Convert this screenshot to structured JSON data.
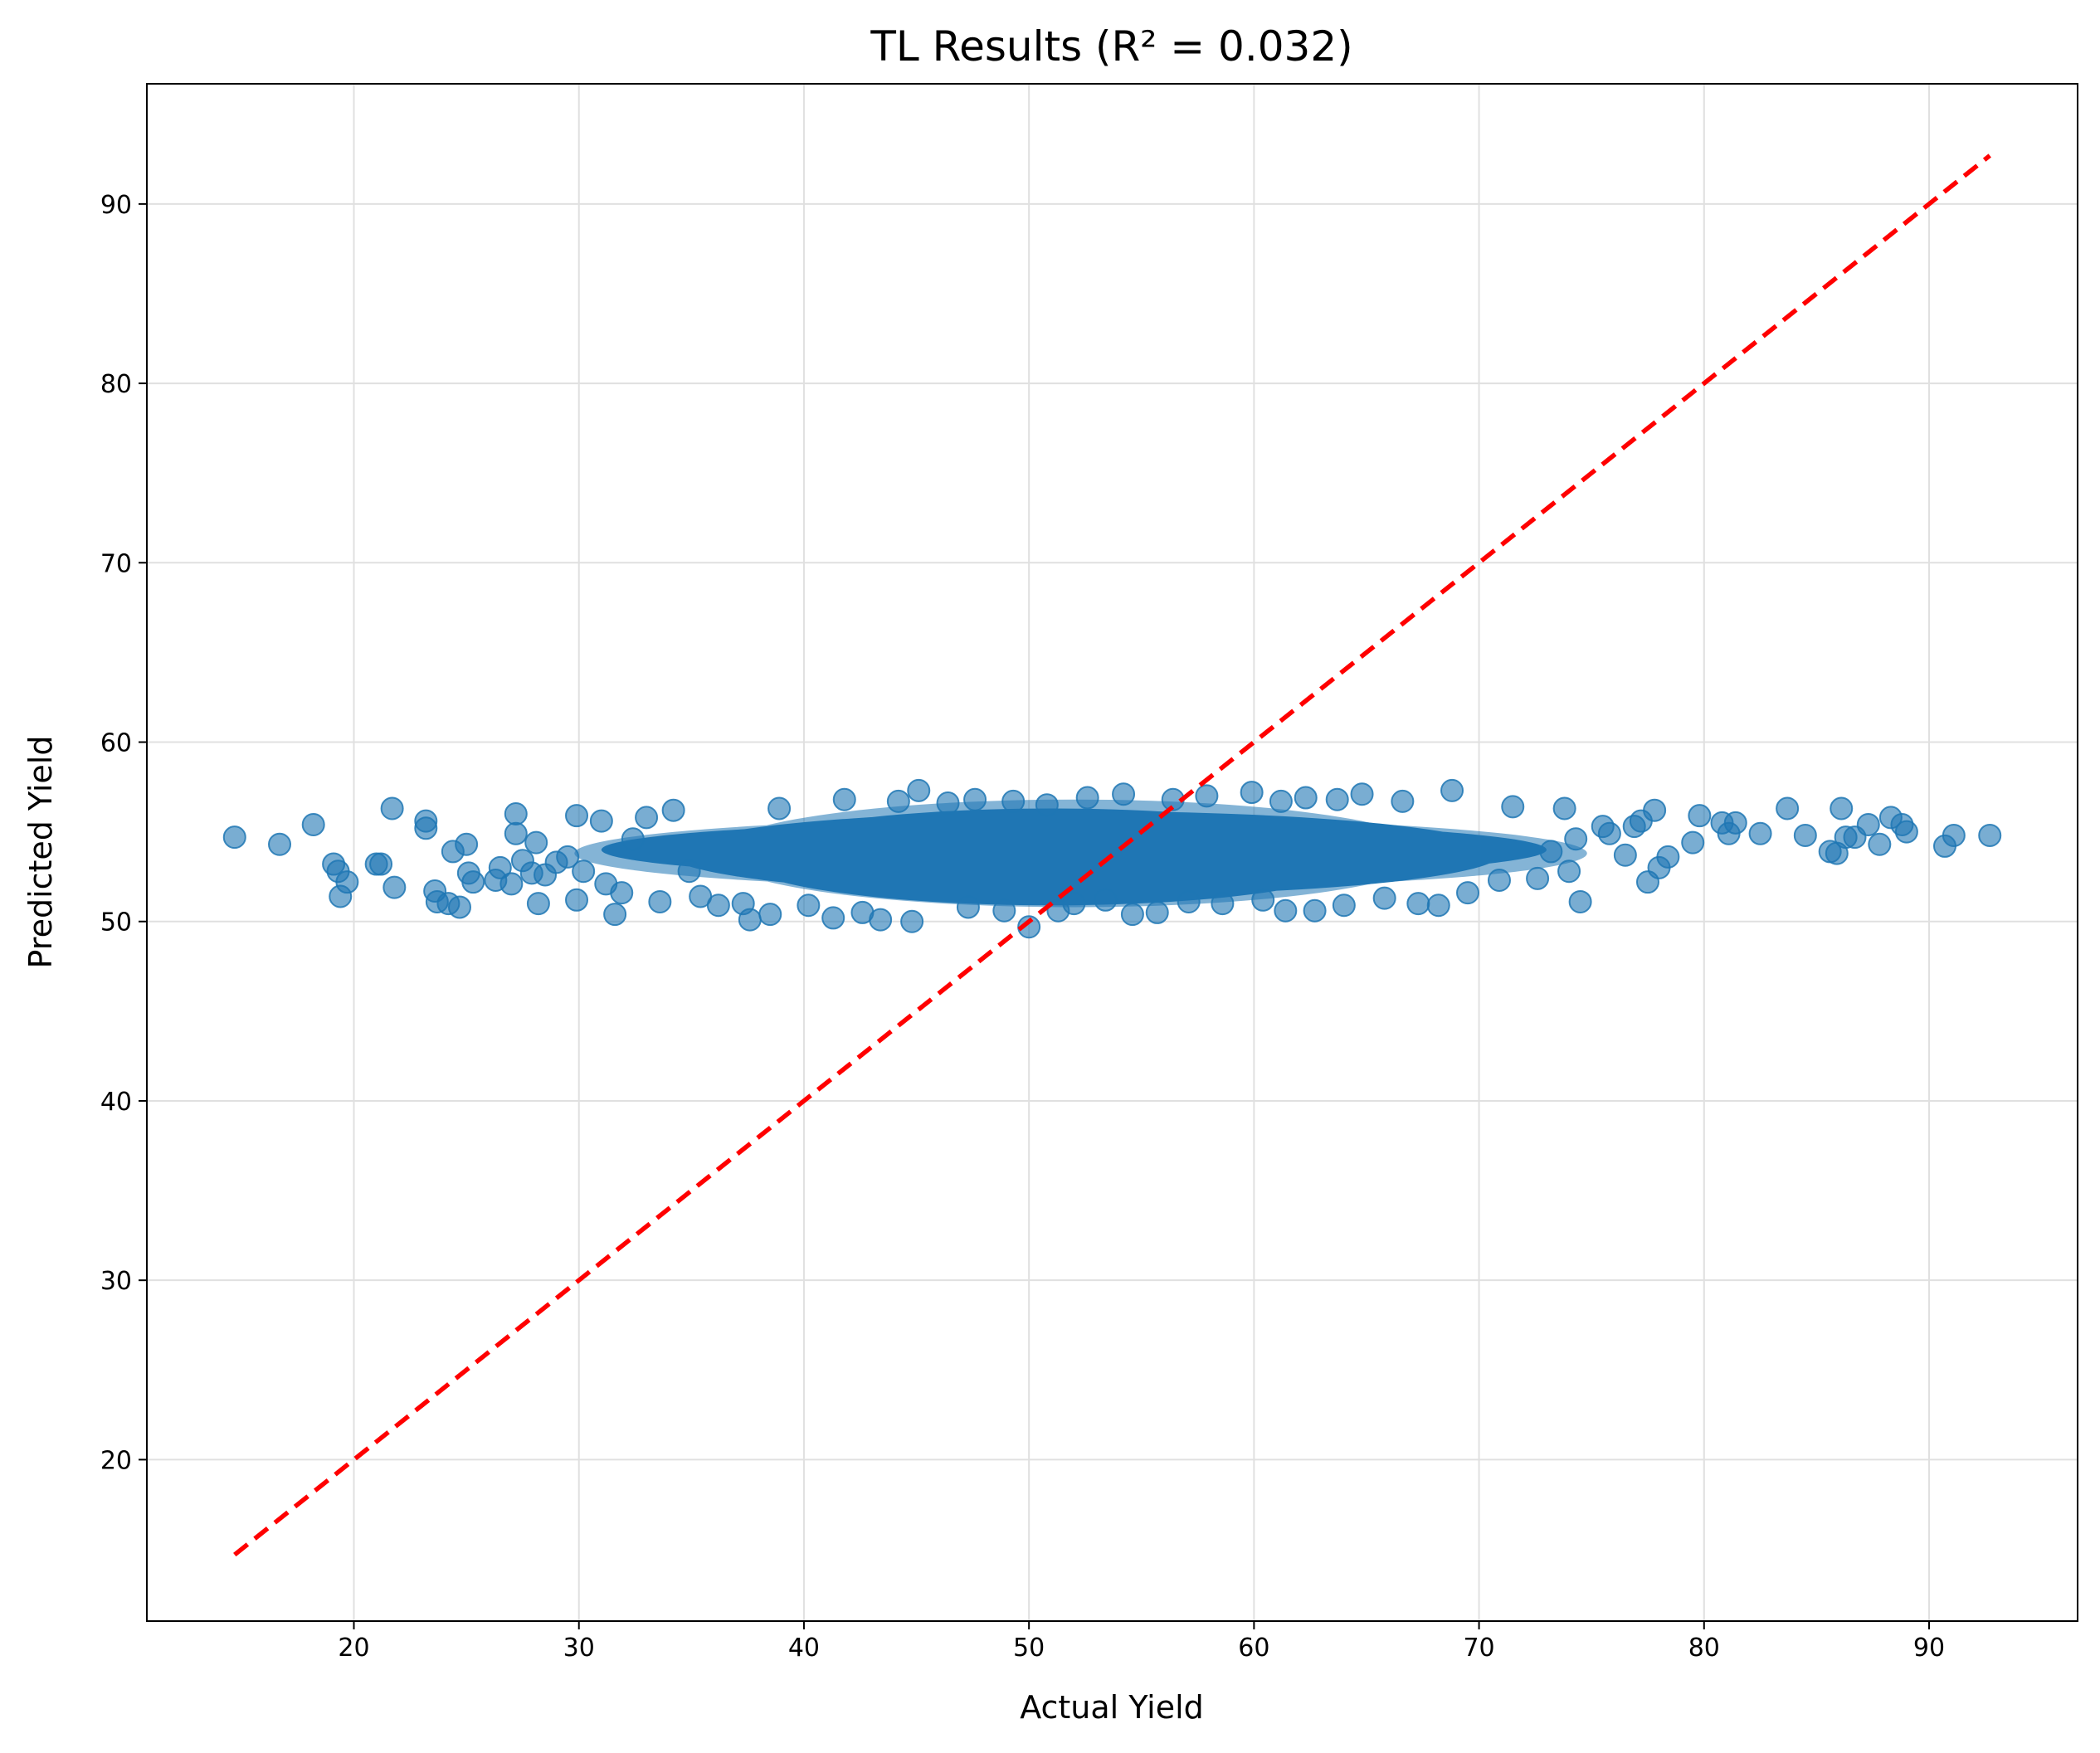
{
  "chart_data": {
    "type": "scatter",
    "title": "TL  Results (R² = 0.032)",
    "xlabel": "Actual Yield",
    "ylabel": "Predicted Yield",
    "xlim": [
      10.8,
      96.6
    ],
    "ylim": [
      11.0,
      96.7
    ],
    "xticks": [
      20,
      30,
      40,
      50,
      60,
      70,
      80,
      90
    ],
    "yticks": [
      20,
      30,
      40,
      50,
      60,
      70,
      80,
      90
    ],
    "grid": true,
    "colors": {
      "points": "#1f77b4",
      "reference_line": "#ff0000",
      "grid": "#e0e0e0",
      "axes": "#000000"
    },
    "reference_line": {
      "style": "dashed",
      "x": [
        14.7,
        92.7
      ],
      "y": [
        14.7,
        92.7
      ]
    },
    "series": [
      {
        "values": [
          [
            14.7,
            54.7
          ],
          [
            16.7,
            54.3
          ],
          [
            18.2,
            55.4
          ],
          [
            19.1,
            53.2
          ],
          [
            19.3,
            52.8
          ],
          [
            19.4,
            51.4
          ],
          [
            19.7,
            52.2
          ],
          [
            21.0,
            53.2
          ],
          [
            21.2,
            53.2
          ],
          [
            21.7,
            56.3
          ],
          [
            21.8,
            51.9
          ],
          [
            23.2,
            55.6
          ],
          [
            23.2,
            55.2
          ],
          [
            23.6,
            51.7
          ],
          [
            23.7,
            51.1
          ],
          [
            24.2,
            51.0
          ],
          [
            24.4,
            53.9
          ],
          [
            24.7,
            50.8
          ],
          [
            25.0,
            54.3
          ],
          [
            25.1,
            52.7
          ],
          [
            25.3,
            52.2
          ],
          [
            26.3,
            52.3
          ],
          [
            26.5,
            53.0
          ],
          [
            27.0,
            52.1
          ],
          [
            27.2,
            56.0
          ],
          [
            27.2,
            54.9
          ],
          [
            27.5,
            53.4
          ],
          [
            27.9,
            52.7
          ],
          [
            28.1,
            54.4
          ],
          [
            28.2,
            51.0
          ],
          [
            28.5,
            52.6
          ],
          [
            29.0,
            53.3
          ],
          [
            29.5,
            53.6
          ],
          [
            29.9,
            51.2
          ],
          [
            29.9,
            55.9
          ],
          [
            30.2,
            52.8
          ],
          [
            31.0,
            55.6
          ],
          [
            31.2,
            52.1
          ],
          [
            31.6,
            50.4
          ],
          [
            31.9,
            51.6
          ],
          [
            32.4,
            54.6
          ],
          [
            33.0,
            55.8
          ],
          [
            33.6,
            51.1
          ],
          [
            34.2,
            56.2
          ],
          [
            34.9,
            52.8
          ],
          [
            35.4,
            51.4
          ],
          [
            36.2,
            50.9
          ],
          [
            37.3,
            51.0
          ],
          [
            37.6,
            50.1
          ],
          [
            38.5,
            50.4
          ],
          [
            38.9,
            56.3
          ],
          [
            40.2,
            50.9
          ],
          [
            41.3,
            50.2
          ],
          [
            41.8,
            56.8
          ],
          [
            42.6,
            50.5
          ],
          [
            43.4,
            50.1
          ],
          [
            44.2,
            56.7
          ],
          [
            44.8,
            50.0
          ],
          [
            45.1,
            57.3
          ],
          [
            46.4,
            56.6
          ],
          [
            47.3,
            50.8
          ],
          [
            47.6,
            56.8
          ],
          [
            48.9,
            50.6
          ],
          [
            49.3,
            56.7
          ],
          [
            50.0,
            49.7
          ],
          [
            50.8,
            56.5
          ],
          [
            51.3,
            50.6
          ],
          [
            52.0,
            51.0
          ],
          [
            52.6,
            56.9
          ],
          [
            53.4,
            51.2
          ],
          [
            54.2,
            57.1
          ],
          [
            54.6,
            50.4
          ],
          [
            55.7,
            50.5
          ],
          [
            56.4,
            56.8
          ],
          [
            57.1,
            51.1
          ],
          [
            57.9,
            57.0
          ],
          [
            58.6,
            51.0
          ],
          [
            59.9,
            57.2
          ],
          [
            60.4,
            51.2
          ],
          [
            61.2,
            56.7
          ],
          [
            61.4,
            50.6
          ],
          [
            62.3,
            56.9
          ],
          [
            62.7,
            50.6
          ],
          [
            63.7,
            56.8
          ],
          [
            64.0,
            50.9
          ],
          [
            64.8,
            57.1
          ],
          [
            65.8,
            51.3
          ],
          [
            66.6,
            56.7
          ],
          [
            67.3,
            51.0
          ],
          [
            68.2,
            50.9
          ],
          [
            68.8,
            57.3
          ],
          [
            69.5,
            51.6
          ],
          [
            70.9,
            52.3
          ],
          [
            71.5,
            56.4
          ],
          [
            72.6,
            52.4
          ],
          [
            73.2,
            53.9
          ],
          [
            73.8,
            56.3
          ],
          [
            74.0,
            52.8
          ],
          [
            74.3,
            54.6
          ],
          [
            74.5,
            51.1
          ],
          [
            75.5,
            55.3
          ],
          [
            75.8,
            54.9
          ],
          [
            76.5,
            53.7
          ],
          [
            76.9,
            55.3
          ],
          [
            77.2,
            55.6
          ],
          [
            77.5,
            52.2
          ],
          [
            77.8,
            56.2
          ],
          [
            78.0,
            53.0
          ],
          [
            78.4,
            53.6
          ],
          [
            79.5,
            54.4
          ],
          [
            79.8,
            55.9
          ],
          [
            80.8,
            55.5
          ],
          [
            81.1,
            54.9
          ],
          [
            81.4,
            55.5
          ],
          [
            82.5,
            54.9
          ],
          [
            83.7,
            56.3
          ],
          [
            84.5,
            54.8
          ],
          [
            85.6,
            53.9
          ],
          [
            85.9,
            53.8
          ],
          [
            86.1,
            56.3
          ],
          [
            86.3,
            54.7
          ],
          [
            86.7,
            54.7
          ],
          [
            87.3,
            55.4
          ],
          [
            87.8,
            54.3
          ],
          [
            88.3,
            55.8
          ],
          [
            88.8,
            55.4
          ],
          [
            89.0,
            55.0
          ],
          [
            90.7,
            54.2
          ],
          [
            91.1,
            54.8
          ],
          [
            92.7,
            54.8
          ]
        ]
      }
    ]
  }
}
